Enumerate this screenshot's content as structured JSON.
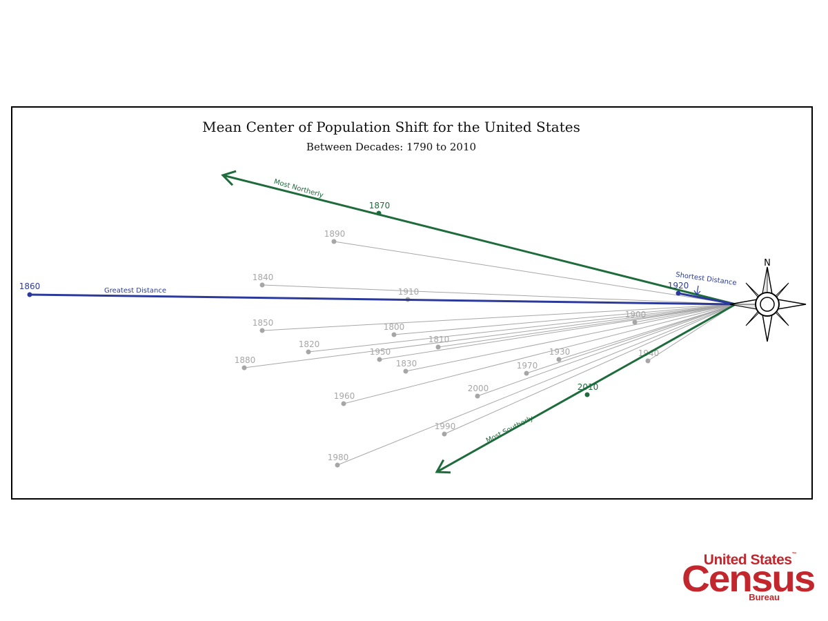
{
  "title": "Mean Center of Population Shift for the United States",
  "subtitle": "Between Decades: 1790 to 2010",
  "colors": {
    "gray": "#a6a6a6",
    "gray_text": "#a6a6a6",
    "green": "#1e6b3c",
    "blue": "#2b3a9a"
  },
  "compass_label": "N",
  "chart_data": {
    "type": "radial shift diagram",
    "points": [
      {
        "year": "1800",
        "style": "gray"
      },
      {
        "year": "1810",
        "style": "gray"
      },
      {
        "year": "1820",
        "style": "gray"
      },
      {
        "year": "1830",
        "style": "gray"
      },
      {
        "year": "1840",
        "style": "gray"
      },
      {
        "year": "1850",
        "style": "gray"
      },
      {
        "year": "1860",
        "style": "blue",
        "annotation": "Greatest Distance"
      },
      {
        "year": "1870",
        "style": "green",
        "annotation": "Most Northerly"
      },
      {
        "year": "1880",
        "style": "gray"
      },
      {
        "year": "1890",
        "style": "gray"
      },
      {
        "year": "1900",
        "style": "gray"
      },
      {
        "year": "1910",
        "style": "gray"
      },
      {
        "year": "1920",
        "style": "blue",
        "annotation": "Shortest Distance"
      },
      {
        "year": "1930",
        "style": "gray"
      },
      {
        "year": "1940",
        "style": "gray"
      },
      {
        "year": "1950",
        "style": "gray"
      },
      {
        "year": "1960",
        "style": "gray"
      },
      {
        "year": "1970",
        "style": "gray"
      },
      {
        "year": "1980",
        "style": "gray"
      },
      {
        "year": "1990",
        "style": "gray"
      },
      {
        "year": "2000",
        "style": "gray"
      },
      {
        "year": "2010",
        "style": "green",
        "annotation": "Most Southerly"
      }
    ]
  },
  "logo": {
    "line1": "United States",
    "tm": "™",
    "line2": "Census",
    "line3": "Bureau"
  }
}
